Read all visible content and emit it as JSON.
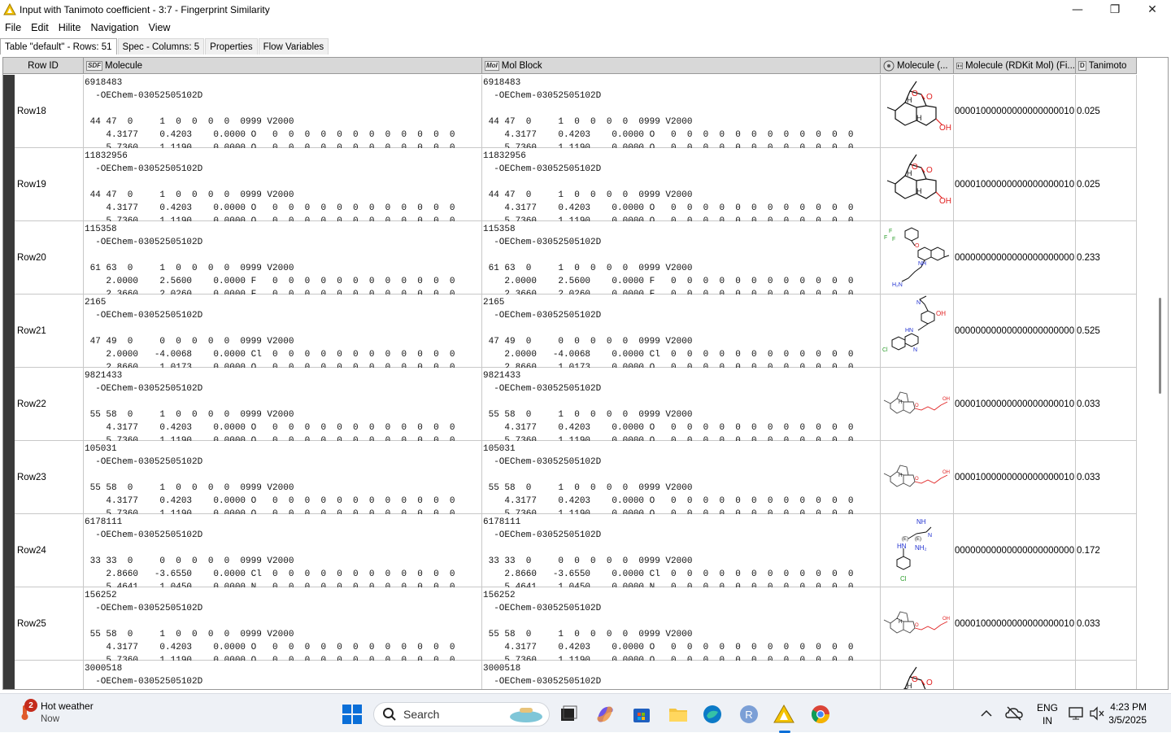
{
  "window": {
    "title": "Input with Tanimoto coefficient - 3:7 - Fingerprint Similarity",
    "minimize_glyph": "—",
    "maximize_glyph": "❐",
    "close_glyph": "✕"
  },
  "menu": [
    "File",
    "Edit",
    "Hilite",
    "Navigation",
    "View"
  ],
  "tabs": [
    "Table \"default\" - Rows: 51",
    "Spec - Columns: 5",
    "Properties",
    "Flow Variables"
  ],
  "columns": {
    "rowid": "Row ID",
    "molecule": "Molecule",
    "molecule_type": "SDF",
    "molblock": "Mol Block",
    "molblock_type": "Mol",
    "rdkit": "Molecule (...",
    "fingerprint": "Molecule (RDKit Mol) (Fi...",
    "tanimoto": "Tanimoto",
    "tanimoto_type": "D"
  },
  "rows": [
    {
      "id": "Row18",
      "lines": [
        "6918483",
        "  -OEChem-03052505102D",
        "",
        " 44 47  0     1  0  0  0  0  0999 V2000",
        "    4.3177    0.4203    0.0000 O   0  0  0  0  0  0  0  0  0  0  0  0",
        "    5.7360    1.1190    0.0000 O   0  0  0  0  0  0  0  0  0  0  0  0"
      ],
      "fp": "00001000000000000000010...",
      "tanimoto": "0.025",
      "structure": "artemisinin"
    },
    {
      "id": "Row19",
      "lines": [
        "11832956",
        "  -OEChem-03052505102D",
        "",
        " 44 47  0     1  0  0  0  0  0999 V2000",
        "    4.3177    0.4203    0.0000 O   0  0  0  0  0  0  0  0  0  0  0  0",
        "    5.7360    1.1190    0.0000 O   0  0  0  0  0  0  0  0  0  0  0  0"
      ],
      "fp": "00001000000000000000010...",
      "tanimoto": "0.025",
      "structure": "artemisinin"
    },
    {
      "id": "Row20",
      "lines": [
        "115358",
        "  -OEChem-03052505102D",
        "",
        " 61 63  0     1  0  0  0  0  0999 V2000",
        "    2.0000    2.5600    0.0000 F   0  0  0  0  0  0  0  0  0  0  0  0",
        "    2.3660    2.0260    0.0000 F   0  0  0  0  0  0  0  0  0  0  0  0"
      ],
      "fp": "00000000000000000000000...",
      "tanimoto": "0.233",
      "structure": "tafenoquine"
    },
    {
      "id": "Row21",
      "lines": [
        "2165",
        "  -OEChem-03052505102D",
        "",
        " 47 49  0     0  0  0  0  0  0999 V2000",
        "    2.0000   -4.0068    0.0000 Cl  0  0  0  0  0  0  0  0  0  0  0  0",
        "    2.8660    1.0173    0.0000 O   0  0  0  0  0  0  0  0  0  0  0  0"
      ],
      "fp": "00000000000000000000000...",
      "tanimoto": "0.525",
      "structure": "amodiaquine"
    },
    {
      "id": "Row22",
      "lines": [
        "9821433",
        "  -OEChem-03052505102D",
        "",
        " 55 58  0     1  0  0  0  0  0999 V2000",
        "    4.3177    0.4203    0.0000 O   0  0  0  0  0  0  0  0  0  0  0  0",
        "    5.7360    1.1190    0.0000 O   0  0  0  0  0  0  0  0  0  0  0  0"
      ],
      "fp": "00001000000000000000010...",
      "tanimoto": "0.033",
      "structure": "artesunate"
    },
    {
      "id": "Row23",
      "lines": [
        "105031",
        "  -OEChem-03052505102D",
        "",
        " 55 58  0     1  0  0  0  0  0999 V2000",
        "    4.3177    0.4203    0.0000 O   0  0  0  0  0  0  0  0  0  0  0  0",
        "    5.7360    1.1190    0.0000 O   0  0  0  0  0  0  0  0  0  0  0  0"
      ],
      "fp": "00001000000000000000010...",
      "tanimoto": "0.033",
      "structure": "artesunate"
    },
    {
      "id": "Row24",
      "lines": [
        "6178111",
        "  -OEChem-03052505102D",
        "",
        " 33 33  0     0  0  0  0  0  0999 V2000",
        "    2.8660   -3.6550    0.0000 Cl  0  0  0  0  0  0  0  0  0  0  0  0",
        "    5.4641    1.0450    0.0000 N   0  0  0  0  0  0  0  0  0  0  0  0"
      ],
      "fp": "00000000000000000000000...",
      "tanimoto": "0.172",
      "structure": "proguanil"
    },
    {
      "id": "Row25",
      "lines": [
        "156252",
        "  -OEChem-03052505102D",
        "",
        " 55 58  0     1  0  0  0  0  0999 V2000",
        "    4.3177    0.4203    0.0000 O   0  0  0  0  0  0  0  0  0  0  0  0",
        "    5.7360    1.1190    0.0000 O   0  0  0  0  0  0  0  0  0  0  0  0"
      ],
      "fp": "00001000000000000000010...",
      "tanimoto": "0.033",
      "structure": "artesunate"
    },
    {
      "id": "",
      "lines": [
        "3000518",
        "  -OEChem-03052505102D"
      ],
      "fp": "",
      "tanimoto": "",
      "structure": "artemisinin"
    }
  ],
  "taskbar": {
    "weather_title": "Hot weather",
    "weather_sub": "Now",
    "notification_count": "2",
    "search_placeholder": "Search",
    "lang_line1": "ENG",
    "lang_line2": "IN",
    "time": "4:23 PM",
    "date": "3/5/2025"
  }
}
